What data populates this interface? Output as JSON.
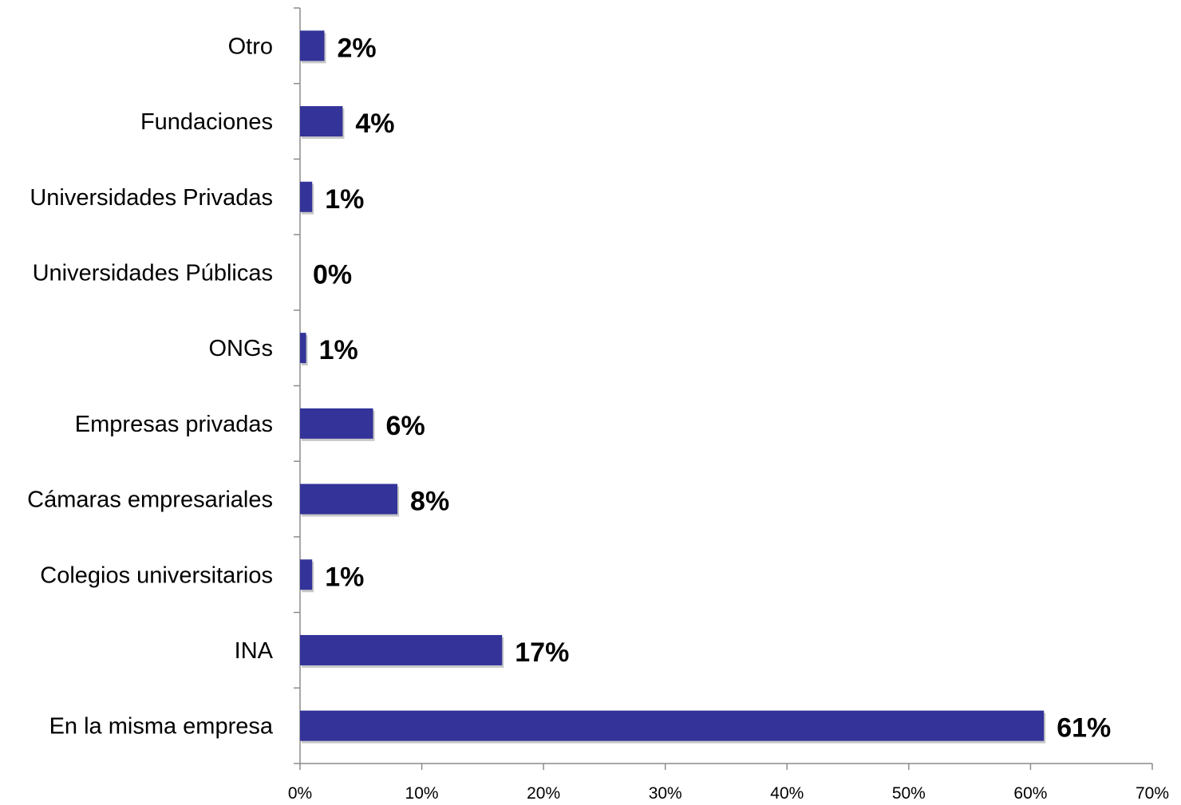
{
  "chart_data": {
    "type": "bar",
    "orientation": "horizontal",
    "categories": [
      "Otro",
      "Fundaciones",
      "Universidades Privadas",
      "Universidades Públicas",
      "ONGs",
      "Empresas privadas",
      "Cámaras empresariales",
      "Colegios universitarios",
      "INA",
      "En la misma empresa"
    ],
    "values": [
      2,
      3.5,
      1,
      0,
      0.5,
      6,
      8,
      1,
      16.6,
      61.1
    ],
    "value_labels": [
      "2%",
      "4%",
      "1%",
      "0%",
      "1%",
      "6%",
      "8%",
      "1%",
      "17%",
      "61%"
    ],
    "x_ticks": [
      "0%",
      "10%",
      "20%",
      "30%",
      "40%",
      "50%",
      "60%",
      "70%"
    ],
    "xlim": [
      0,
      70
    ],
    "xlabel": "",
    "ylabel": "",
    "grid": false,
    "bar_color": "#333399"
  }
}
